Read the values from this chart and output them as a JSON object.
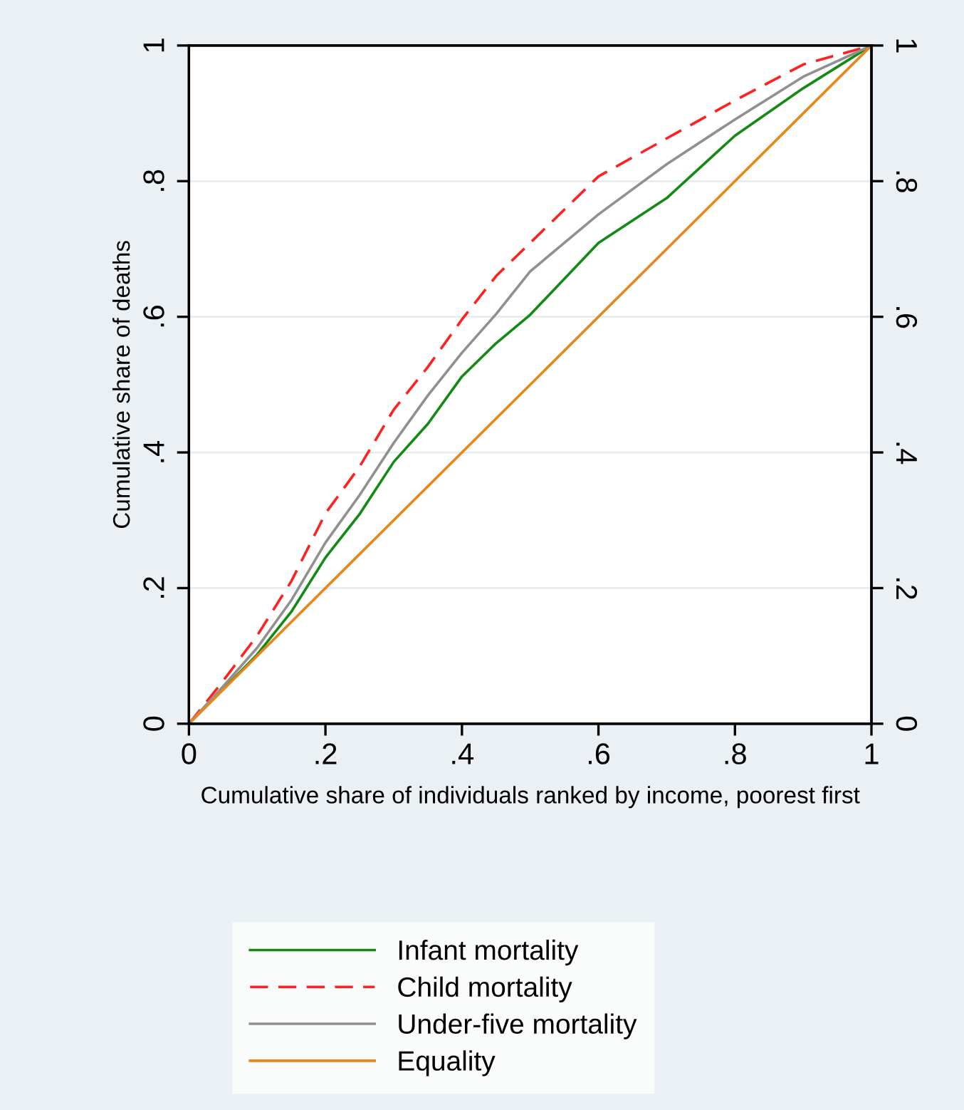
{
  "chart_data": {
    "type": "line",
    "xlabel": "Cumulative share of individuals ranked by income, poorest first",
    "ylabel": "Cumulative share of deaths",
    "xlim": [
      0,
      1
    ],
    "ylim": [
      0,
      1
    ],
    "xticks": [
      0,
      {
        "value": 0.2,
        "label": ".2"
      },
      {
        "value": 0.4,
        "label": ".4"
      },
      {
        "value": 0.6,
        "label": ".6"
      },
      {
        "value": 0.8,
        "label": ".8"
      },
      1
    ],
    "yticks": [
      0,
      {
        "value": 0.2,
        "label": ".2"
      },
      {
        "value": 0.4,
        "label": ".4"
      },
      {
        "value": 0.6,
        "label": ".6"
      },
      {
        "value": 0.8,
        "label": ".8"
      },
      1
    ],
    "y2lim": [
      0,
      1
    ],
    "y2ticks": [
      0,
      {
        "value": 0.2,
        "label": ".2"
      },
      {
        "value": 0.4,
        "label": ".4"
      },
      {
        "value": 0.6,
        "label": ".6"
      },
      {
        "value": 0.8,
        "label": ".8"
      },
      1
    ],
    "grid": "y",
    "legend": "bottom",
    "x": [
      0,
      0.05,
      0.1,
      0.15,
      0.2,
      0.25,
      0.3,
      0.35,
      0.4,
      0.45,
      0.5,
      0.6,
      0.7,
      0.8,
      0.9,
      1
    ],
    "series": [
      {
        "name": "Infant mortality",
        "color": "#138a13",
        "line_style": "solid",
        "x": [
          0,
          0.1,
          0.15,
          0.2,
          0.25,
          0.3,
          0.35,
          0.4,
          0.45,
          0.5,
          0.6,
          0.7,
          0.8,
          0.9,
          1
        ],
        "values": [
          0,
          0.102,
          0.165,
          0.245,
          0.309,
          0.386,
          0.442,
          0.512,
          0.561,
          0.603,
          0.709,
          0.775,
          0.867,
          0.937,
          1
        ]
      },
      {
        "name": "Child mortality",
        "color": "#ff2020",
        "line_style": "dashed",
        "values": [
          0,
          0.063,
          0.13,
          0.21,
          0.31,
          0.379,
          0.463,
          0.526,
          0.596,
          0.66,
          0.709,
          0.807,
          0.863,
          0.919,
          0.972,
          1
        ]
      },
      {
        "name": "Under-five mortality",
        "color": "#909090",
        "line_style": "solid",
        "values": [
          0,
          0.055,
          0.112,
          0.182,
          0.267,
          0.337,
          0.414,
          0.484,
          0.547,
          0.604,
          0.667,
          0.751,
          0.825,
          0.891,
          0.954,
          1
        ]
      },
      {
        "name": "Equality",
        "color": "#e8861a",
        "line_style": "solid",
        "x": [
          0,
          1
        ],
        "values": [
          0,
          1
        ]
      }
    ]
  }
}
